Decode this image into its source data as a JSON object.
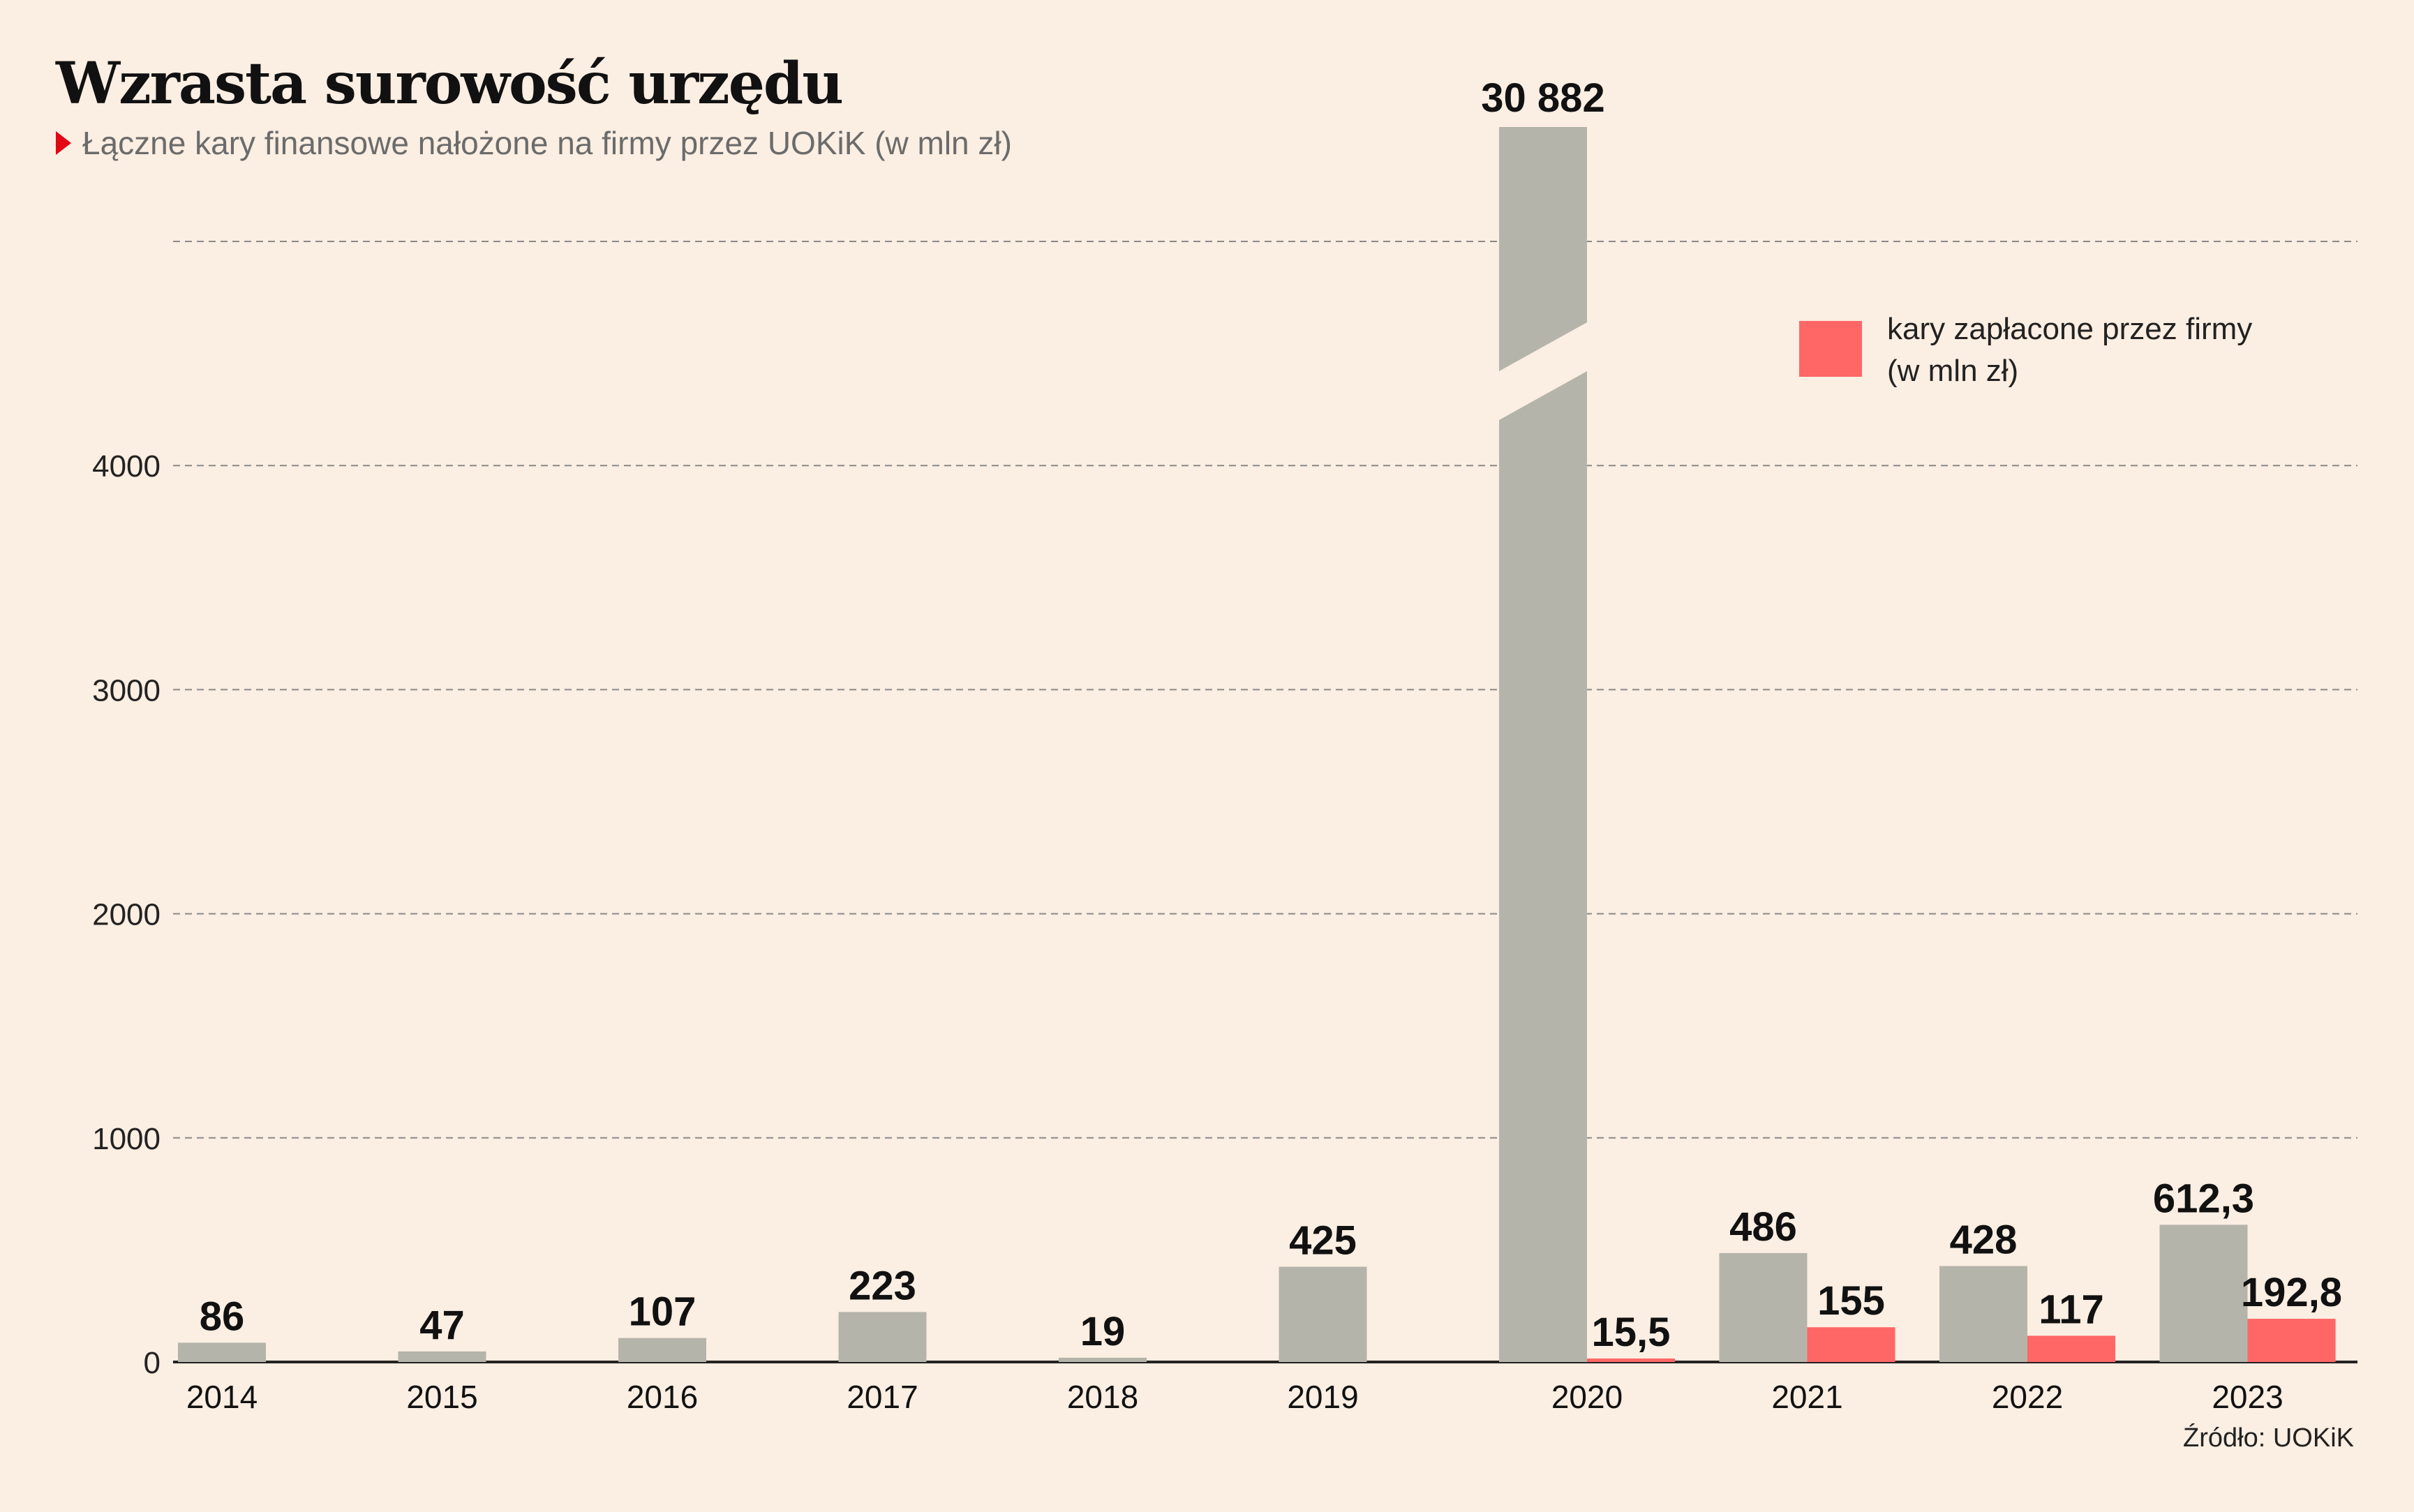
{
  "header": {
    "title": "Wzrasta surowość urzędu",
    "subtitle": "Łączne kary finansowe nałożone na firmy przez UOKiK (w mln zł)"
  },
  "legend": {
    "line1": "kary zapłacone przez firmy",
    "line2": "(w mln zł)"
  },
  "source": "Źródło: UOKiK",
  "colors": {
    "background": "#fbeee2",
    "imposed": "#b5b4ab",
    "paid": "#ff6666",
    "marker": "#e30613"
  },
  "chart_data": {
    "type": "bar",
    "categories": [
      "2014",
      "2015",
      "2016",
      "2017",
      "2018",
      "2019",
      "2020",
      "2021",
      "2022",
      "2023"
    ],
    "series": [
      {
        "values": [
          86,
          47,
          107,
          223,
          19,
          425,
          30882,
          486,
          428,
          612.3
        ],
        "labels": [
          "86",
          "47",
          "107",
          "223",
          "19",
          "425",
          "30 882",
          "486",
          "428",
          "612,3"
        ],
        "color": "#b5b4ab"
      },
      {
        "name": "kary zapłacone przez firmy (w mln zł)",
        "values": [
          null,
          null,
          null,
          null,
          null,
          null,
          15.5,
          155,
          117,
          192.8
        ],
        "labels": [
          "",
          "",
          "",
          "",
          "",
          "",
          "15,5",
          "155",
          "117",
          "192,8"
        ],
        "color": "#ff6666"
      }
    ],
    "yticks": [
      "0",
      "1000",
      "2000",
      "3000",
      "4000"
    ],
    "ylim": [
      0,
      5000
    ],
    "axis_break": true,
    "grid": true,
    "legend_position": "top-right"
  }
}
